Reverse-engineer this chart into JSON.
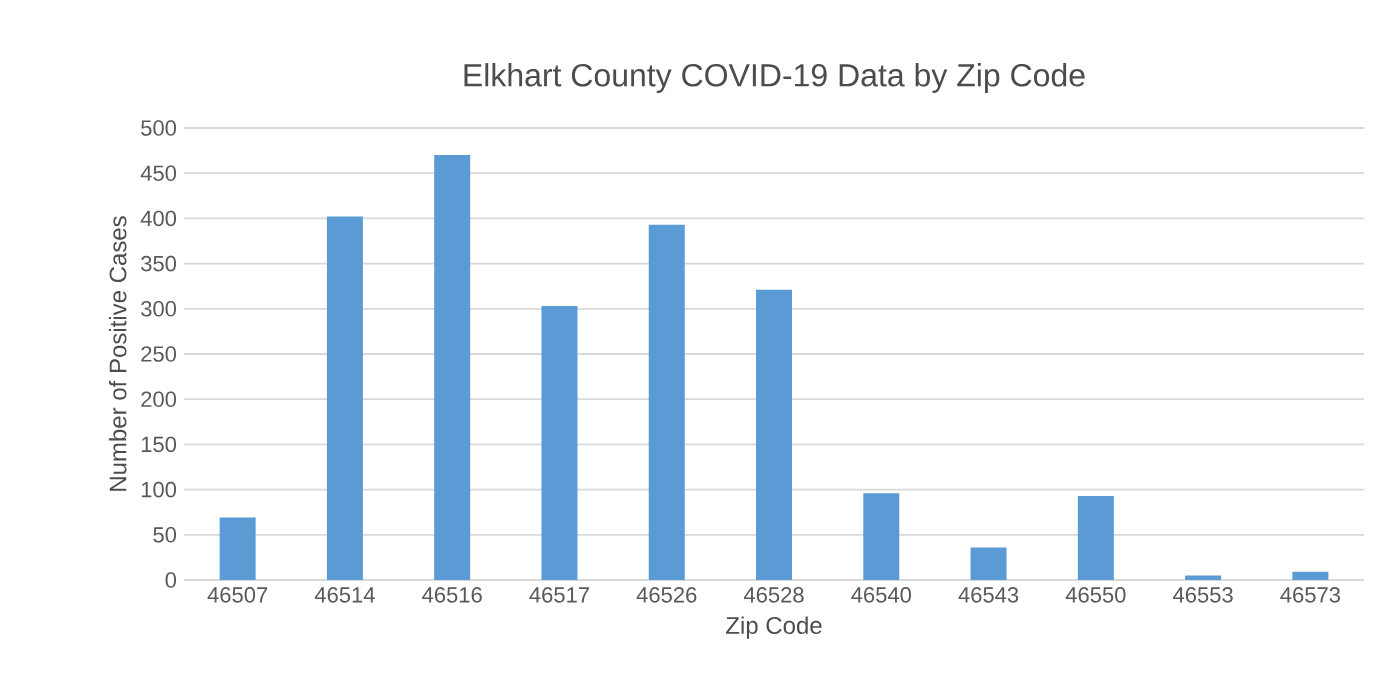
{
  "chart_data": {
    "type": "bar",
    "title": "Elkhart County COVID-19 Data by Zip Code",
    "xlabel": "Zip Code",
    "ylabel": "Number of Positive Cases",
    "categories": [
      "46507",
      "46514",
      "46516",
      "46517",
      "46526",
      "46528",
      "46540",
      "46543",
      "46550",
      "46553",
      "46573"
    ],
    "values": [
      69,
      402,
      470,
      303,
      393,
      321,
      96,
      36,
      93,
      5,
      9
    ],
    "color": "#5b9bd5",
    "ylim": [
      0,
      500
    ],
    "yticks": [
      0,
      50,
      100,
      150,
      200,
      250,
      300,
      350,
      400,
      450,
      500
    ],
    "grid": "y"
  }
}
